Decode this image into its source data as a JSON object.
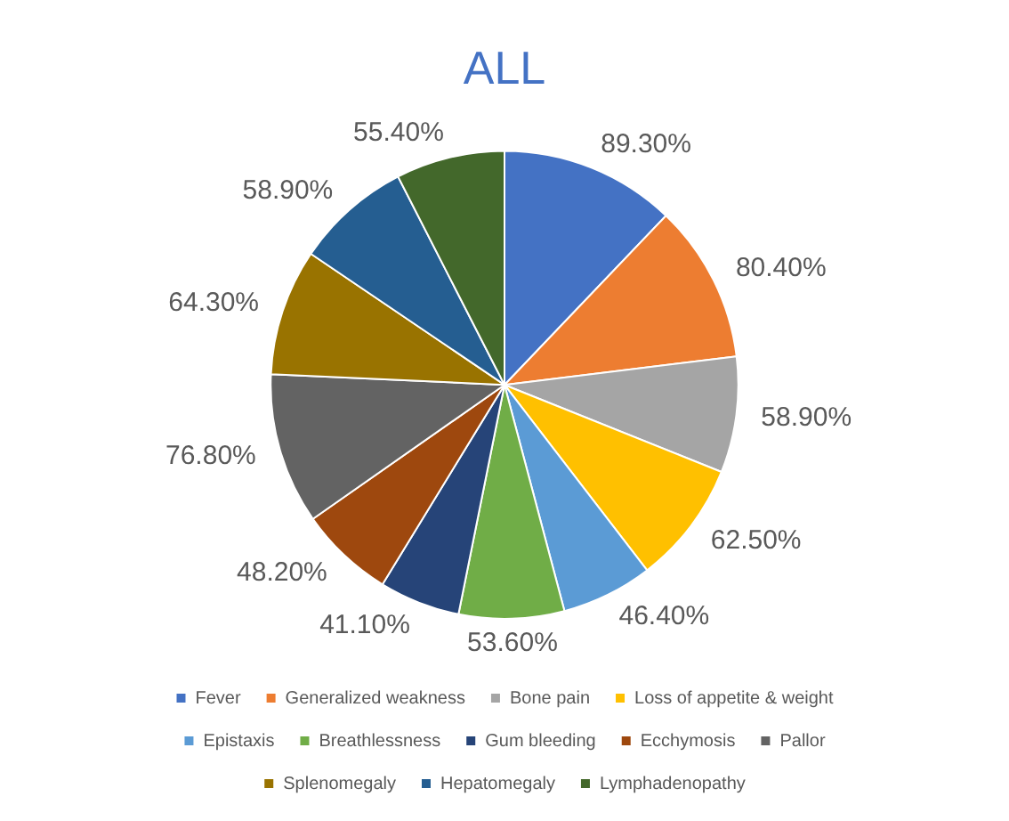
{
  "chart_data": {
    "type": "pie",
    "title": "ALL",
    "categories": [
      "Fever",
      "Generalized weakness",
      "Bone pain",
      "Loss of appetite & weight",
      "Epistaxis",
      "Breathlessness",
      "Gum bleeding",
      "Ecchymosis",
      "Pallor",
      "Splenomegaly",
      "Hepatomegaly",
      "Lymphadenopathy"
    ],
    "values": [
      89.3,
      80.4,
      58.9,
      62.5,
      46.4,
      53.6,
      41.1,
      48.2,
      76.8,
      64.3,
      58.9,
      55.4
    ],
    "value_labels": [
      "89.30%",
      "80.40%",
      "58.90%",
      "62.50%",
      "46.40%",
      "53.60%",
      "41.10%",
      "48.20%",
      "76.80%",
      "64.30%",
      "58.90%",
      "55.40%"
    ],
    "colors": [
      "#4472c4",
      "#ed7d31",
      "#a5a5a5",
      "#ffc000",
      "#5b9bd5",
      "#70ad47",
      "#264478",
      "#9e480e",
      "#636363",
      "#997300",
      "#255e91",
      "#43682b"
    ],
    "legend": "bottom"
  }
}
